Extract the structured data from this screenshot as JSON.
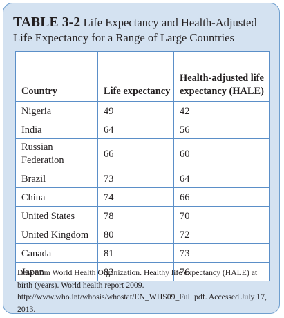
{
  "table": {
    "label": "TABLE 3-2",
    "title": "Life Expectancy and Health-Adjusted Life Expectancy for a Range of Large Countries",
    "headers": {
      "country": "Country",
      "life": "Life expectancy",
      "hale": "Health-adjusted life expectancy (HALE)"
    },
    "rows": [
      {
        "country": "Nigeria",
        "life": "49",
        "hale": "42"
      },
      {
        "country": "India",
        "life": "64",
        "hale": "56"
      },
      {
        "country": "Russian Federation",
        "life": "66",
        "hale": "60"
      },
      {
        "country": "Brazil",
        "life": "73",
        "hale": "64"
      },
      {
        "country": "China",
        "life": "74",
        "hale": "66"
      },
      {
        "country": "United States",
        "life": "78",
        "hale": "70"
      },
      {
        "country": "United Kingdom",
        "life": "80",
        "hale": "72"
      },
      {
        "country": "Canada",
        "life": "81",
        "hale": "73"
      },
      {
        "country": "Japan",
        "life": "83",
        "hale": "76"
      }
    ],
    "source": "Data from World Health Organization. Healthy life expectancy (HALE) at birth (years). World health report 2009. http://www.who.int/whosis/whostat/EN_WHS09_Full.pdf. Accessed July 17, 2013."
  },
  "colors": {
    "panel_background": "#d4e2f1",
    "border": "#5b8fc8",
    "text": "#231f20"
  }
}
